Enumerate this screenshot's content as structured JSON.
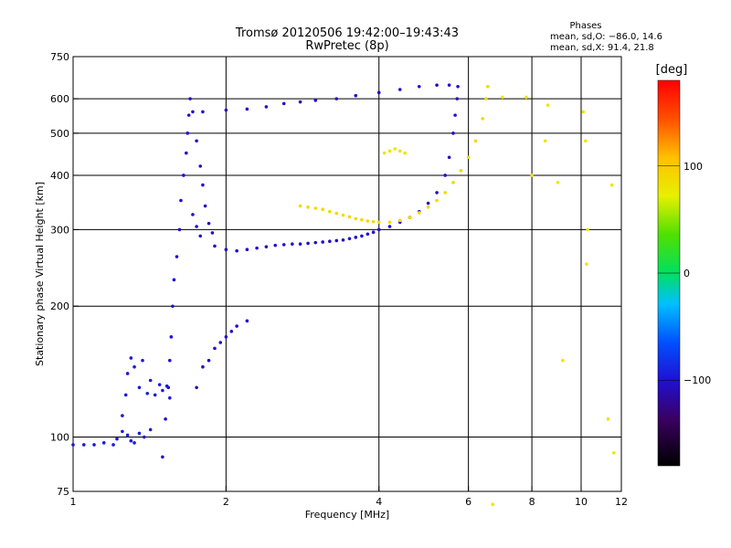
{
  "chart_data": {
    "type": "scatter",
    "title": "Tromsø 20120506 19:42:00–19:43:43",
    "subtitle": "RwPretec (8p)",
    "xlabel": "Frequency [MHz]",
    "ylabel": "Stationary phase Virtual Height [km]",
    "x_scale": "log",
    "y_scale": "log",
    "xlim": [
      1,
      12
    ],
    "ylim": [
      75,
      750
    ],
    "x_ticks": [
      1,
      2,
      4,
      6,
      8,
      10,
      12
    ],
    "y_ticks": [
      75,
      100,
      200,
      300,
      400,
      500,
      600,
      750
    ],
    "x_gridlines": [
      2,
      4,
      6,
      8,
      10
    ],
    "y_gridlines": [
      100,
      200,
      300,
      400,
      500,
      600
    ],
    "grid": true,
    "phase_box": {
      "title": "Phases",
      "line1": "mean, sd,O: −86.0, 14.6",
      "line2": "mean, sd,X:  91.4, 21.8"
    },
    "colorbar": {
      "label": "[deg]",
      "min": -180,
      "max": 180,
      "tick_values": [
        100,
        0,
        -100
      ],
      "tick_labels": [
        "100",
        "0",
        "−100"
      ]
    },
    "series": [
      {
        "trace": "low_layer",
        "color_phase": -95,
        "points": [
          [
            1.0,
            96
          ],
          [
            1.05,
            96
          ],
          [
            1.1,
            96
          ],
          [
            1.15,
            97
          ],
          [
            1.2,
            96
          ],
          [
            1.22,
            99
          ],
          [
            1.25,
            103
          ],
          [
            1.28,
            101
          ],
          [
            1.3,
            98
          ],
          [
            1.32,
            97
          ],
          [
            1.35,
            102
          ],
          [
            1.38,
            100
          ],
          [
            1.42,
            104
          ]
        ]
      },
      {
        "trace": "E_rise",
        "color_phase": -95,
        "points": [
          [
            1.25,
            112
          ],
          [
            1.27,
            125
          ],
          [
            1.28,
            140
          ],
          [
            1.3,
            152
          ],
          [
            1.32,
            145
          ],
          [
            1.35,
            130
          ],
          [
            1.37,
            150
          ],
          [
            1.4,
            126
          ],
          [
            1.42,
            135
          ],
          [
            1.45,
            125
          ],
          [
            1.48,
            132
          ],
          [
            1.5,
            128
          ],
          [
            1.53,
            131
          ],
          [
            1.55,
            123
          ]
        ]
      },
      {
        "trace": "F1_vertical",
        "color_phase": -100,
        "points": [
          [
            1.5,
            90
          ],
          [
            1.52,
            110
          ],
          [
            1.54,
            130
          ],
          [
            1.55,
            150
          ],
          [
            1.56,
            170
          ],
          [
            1.57,
            200
          ],
          [
            1.58,
            230
          ],
          [
            1.6,
            260
          ],
          [
            1.62,
            300
          ],
          [
            1.63,
            350
          ],
          [
            1.65,
            400
          ],
          [
            1.67,
            450
          ],
          [
            1.68,
            500
          ],
          [
            1.69,
            550
          ],
          [
            1.7,
            600
          ],
          [
            1.72,
            560
          ],
          [
            1.75,
            480
          ],
          [
            1.78,
            420
          ],
          [
            1.8,
            380
          ],
          [
            1.82,
            340
          ],
          [
            1.85,
            310
          ],
          [
            1.88,
            295
          ],
          [
            1.72,
            325
          ],
          [
            1.75,
            305
          ],
          [
            1.78,
            290
          ]
        ]
      },
      {
        "trace": "mid_branch",
        "color_phase": -100,
        "points": [
          [
            1.75,
            130
          ],
          [
            1.8,
            145
          ],
          [
            1.85,
            150
          ],
          [
            1.9,
            160
          ],
          [
            1.95,
            165
          ],
          [
            2.0,
            170
          ],
          [
            2.05,
            175
          ],
          [
            2.1,
            180
          ],
          [
            2.2,
            185
          ]
        ]
      },
      {
        "trace": "F2_O_mode",
        "color_phase": -100,
        "points": [
          [
            1.9,
            275
          ],
          [
            2.0,
            270
          ],
          [
            2.1,
            268
          ],
          [
            2.2,
            270
          ],
          [
            2.3,
            272
          ],
          [
            2.4,
            274
          ],
          [
            2.5,
            276
          ],
          [
            2.6,
            277
          ],
          [
            2.7,
            278
          ],
          [
            2.8,
            278
          ],
          [
            2.9,
            279
          ],
          [
            3.0,
            280
          ],
          [
            3.1,
            281
          ],
          [
            3.2,
            282
          ],
          [
            3.3,
            283
          ],
          [
            3.4,
            284
          ],
          [
            3.5,
            286
          ],
          [
            3.6,
            288
          ],
          [
            3.7,
            290
          ],
          [
            3.8,
            293
          ],
          [
            3.9,
            296
          ],
          [
            4.0,
            300
          ],
          [
            4.2,
            305
          ],
          [
            4.4,
            312
          ],
          [
            4.6,
            320
          ],
          [
            4.8,
            330
          ],
          [
            5.0,
            345
          ],
          [
            5.2,
            365
          ],
          [
            5.4,
            400
          ],
          [
            5.5,
            440
          ],
          [
            5.6,
            500
          ],
          [
            5.65,
            550
          ],
          [
            5.7,
            600
          ],
          [
            5.72,
            640
          ]
        ]
      },
      {
        "trace": "F2_X_mode",
        "color_phase": 90,
        "points": [
          [
            2.8,
            340
          ],
          [
            2.9,
            338
          ],
          [
            3.0,
            336
          ],
          [
            3.1,
            334
          ],
          [
            3.2,
            330
          ],
          [
            3.3,
            327
          ],
          [
            3.4,
            324
          ],
          [
            3.5,
            321
          ],
          [
            3.6,
            318
          ],
          [
            3.7,
            316
          ],
          [
            3.8,
            314
          ],
          [
            3.9,
            313
          ],
          [
            4.0,
            312
          ],
          [
            4.2,
            312
          ],
          [
            4.4,
            315
          ],
          [
            4.6,
            320
          ],
          [
            4.8,
            328
          ],
          [
            5.0,
            338
          ],
          [
            5.2,
            350
          ],
          [
            5.4,
            365
          ],
          [
            5.6,
            385
          ],
          [
            5.8,
            410
          ],
          [
            6.0,
            440
          ],
          [
            6.2,
            480
          ],
          [
            6.4,
            540
          ],
          [
            6.5,
            600
          ],
          [
            6.55,
            640
          ]
        ]
      },
      {
        "trace": "top_band",
        "color_phase": -100,
        "points": [
          [
            1.8,
            560
          ],
          [
            2.0,
            565
          ],
          [
            2.2,
            568
          ],
          [
            2.4,
            575
          ],
          [
            2.6,
            585
          ],
          [
            2.8,
            590
          ],
          [
            3.0,
            595
          ],
          [
            3.3,
            600
          ],
          [
            3.6,
            610
          ],
          [
            4.0,
            620
          ],
          [
            4.4,
            630
          ],
          [
            4.8,
            640
          ],
          [
            5.2,
            645
          ],
          [
            5.5,
            645
          ]
        ]
      },
      {
        "trace": "scattered",
        "color_phase": 80,
        "points": [
          [
            4.1,
            450
          ],
          [
            4.2,
            455
          ],
          [
            4.3,
            460
          ],
          [
            4.4,
            455
          ],
          [
            4.5,
            450
          ],
          [
            8.6,
            580
          ],
          [
            10.1,
            560
          ],
          [
            10.2,
            480
          ],
          [
            10.3,
            300
          ],
          [
            10.25,
            250
          ],
          [
            11.3,
            110
          ],
          [
            11.6,
            92
          ],
          [
            11.5,
            380
          ],
          [
            9.2,
            150
          ],
          [
            9.0,
            385
          ],
          [
            8.5,
            480
          ],
          [
            8.0,
            400
          ],
          [
            7.8,
            605
          ],
          [
            6.7,
            70
          ],
          [
            7.0,
            605
          ]
        ]
      }
    ]
  }
}
